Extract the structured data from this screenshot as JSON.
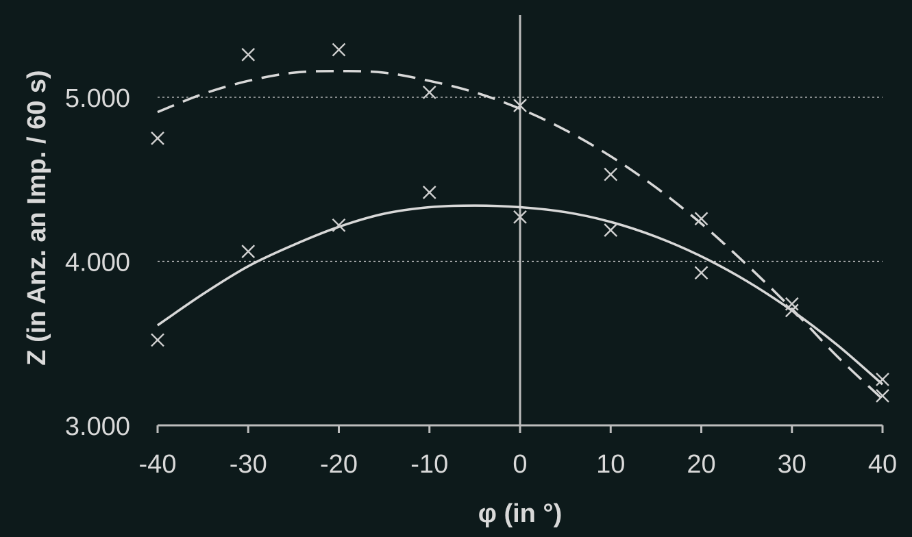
{
  "chart_data": {
    "type": "scatter",
    "xlabel": "φ (in °)",
    "ylabel": "Z (in Anz. an Imp. / 60 s)",
    "xlim": [
      -40,
      40
    ],
    "ylim": [
      3000,
      5500
    ],
    "x_ticks": [
      -40,
      -30,
      -20,
      -10,
      0,
      10,
      20,
      30,
      40
    ],
    "x_tick_labels": [
      "-40",
      "-30",
      "-20",
      "-10",
      "0",
      "10",
      "20",
      "30",
      "40"
    ],
    "y_ticks": [
      3000,
      4000,
      5000
    ],
    "y_tick_labels": [
      "3.000",
      "4.000",
      "5.000"
    ],
    "y_gridlines": [
      4000,
      5000
    ],
    "grid": "horizontal dotted at 4.000 and 5.000",
    "legend": "none",
    "series": [
      {
        "line_style": "dashed",
        "marker": "x",
        "x": [
          -40,
          -30,
          -20,
          -10,
          0,
          10,
          20,
          30,
          40
        ],
        "y": [
          4750,
          5260,
          5290,
          5030,
          4950,
          4530,
          4260,
          3740,
          3180
        ],
        "fit_curve": {
          "x": [
            -40,
            -35,
            -30,
            -25,
            -20,
            -15,
            -10,
            -5,
            0,
            5,
            10,
            15,
            20,
            25,
            30,
            35,
            40
          ],
          "y": [
            4910,
            5020,
            5100,
            5150,
            5160,
            5150,
            5100,
            5030,
            4930,
            4800,
            4640,
            4450,
            4230,
            3980,
            3710,
            3420,
            3160
          ]
        }
      },
      {
        "line_style": "solid",
        "marker": "x",
        "x": [
          -40,
          -30,
          -20,
          -10,
          0,
          10,
          20,
          30,
          40
        ],
        "y": [
          3520,
          4060,
          4220,
          4420,
          4270,
          4190,
          3930,
          3700,
          3280
        ],
        "fit_curve": {
          "x": [
            -40,
            -35,
            -30,
            -25,
            -20,
            -15,
            -10,
            -5,
            0,
            5,
            10,
            15,
            20,
            25,
            30,
            35,
            40
          ],
          "y": [
            3610,
            3800,
            3970,
            4100,
            4210,
            4290,
            4330,
            4340,
            4330,
            4300,
            4240,
            4150,
            4030,
            3880,
            3700,
            3490,
            3250
          ]
        }
      }
    ]
  }
}
